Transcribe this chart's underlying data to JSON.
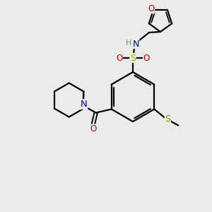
{
  "bg_color": "#ebebeb",
  "atom_colors": {
    "C": "#000000",
    "N": "#0000cc",
    "O": "#cc0000",
    "S_sulfo": "#aaaa00",
    "S_thio": "#888800",
    "H": "#669966"
  },
  "bond_color": "#000000",
  "line_width": 1.6,
  "font_size": 8.5,
  "fig_size": [
    3.0,
    3.0
  ]
}
